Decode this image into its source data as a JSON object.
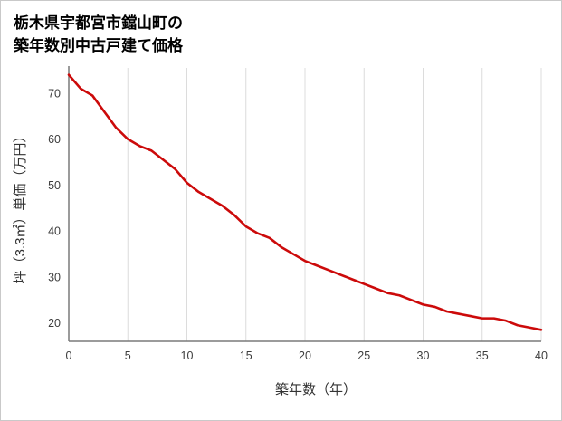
{
  "title": {
    "line1": "栃木県宇都宮市鐺山町の",
    "line2": "築年数別中古戸建て価格"
  },
  "chart_data": {
    "type": "line",
    "title": "栃木県宇都宮市鐺山町の築年数別中古戸建て価格",
    "xlabel": "築年数（年）",
    "ylabel": "坪（3.3㎡）単価（万円）",
    "x": [
      0,
      1,
      2,
      3,
      4,
      5,
      6,
      7,
      8,
      9,
      10,
      11,
      12,
      13,
      14,
      15,
      16,
      17,
      18,
      19,
      20,
      21,
      22,
      23,
      24,
      25,
      26,
      27,
      28,
      29,
      30,
      31,
      32,
      33,
      34,
      35,
      36,
      37,
      38,
      39,
      40
    ],
    "values": [
      74,
      71,
      69.5,
      66,
      62.5,
      60,
      58.5,
      57.5,
      55.5,
      53.5,
      50.5,
      48.5,
      47,
      45.5,
      43.5,
      41,
      39.5,
      38.5,
      36.5,
      35,
      33.5,
      32.5,
      31.5,
      30.5,
      29.5,
      28.5,
      27.5,
      26.5,
      26,
      25,
      24,
      23.5,
      22.5,
      22,
      21.5,
      21,
      21,
      20.5,
      19.5,
      19,
      18.5
    ],
    "xlim": [
      0,
      40
    ],
    "ylim": [
      16,
      75.5
    ],
    "x_ticks": [
      0,
      5,
      10,
      15,
      20,
      25,
      30,
      35,
      40
    ],
    "y_ticks": [
      20,
      30,
      40,
      50,
      60,
      70
    ],
    "grid": "vertical-only",
    "legend": "none",
    "line_color": "#cc0a0a",
    "axis_color": "#7a7a7a",
    "grid_color": "#dcdcdc",
    "tick_color": "#3c3c3c"
  }
}
